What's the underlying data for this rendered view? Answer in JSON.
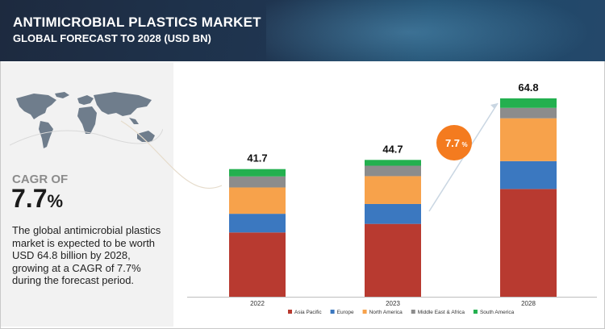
{
  "header": {
    "title": "ANTIMICROBIAL PLASTICS MARKET",
    "subtitle": "GLOBAL FORECAST TO 2028 (USD BN)"
  },
  "summary": {
    "cagr_label": "CAGR OF",
    "cagr_number": "7.7",
    "cagr_unit": "%",
    "description": "The global antimicrobial plastics market is expected to be worth USD 64.8 billion by 2028, growing at a CAGR of 7.7% during the forecast period."
  },
  "growth_badge": {
    "number": "7.7",
    "unit": "%"
  },
  "chart_data": {
    "type": "bar",
    "stacked": true,
    "categories": [
      "2022",
      "2023",
      "2028"
    ],
    "totals": [
      "41.7",
      "44.7",
      "64.8"
    ],
    "ylim": [
      0,
      64.8
    ],
    "series": [
      {
        "name": "Asia Pacific",
        "color": "#b83a30",
        "values": [
          21.0,
          23.8,
          35.2
        ]
      },
      {
        "name": "Europe",
        "color": "#3b78c0",
        "values": [
          6.1,
          6.5,
          9.1
        ]
      },
      {
        "name": "North America",
        "color": "#f7a24b",
        "values": [
          8.6,
          9.1,
          14.0
        ]
      },
      {
        "name": "Middle East & Africa",
        "color": "#8c8c8c",
        "values": [
          3.6,
          3.4,
          3.4
        ]
      },
      {
        "name": "South America",
        "color": "#23b04f",
        "values": [
          2.4,
          1.9,
          3.1
        ]
      }
    ],
    "legend_position": "bottom",
    "grid": false
  }
}
